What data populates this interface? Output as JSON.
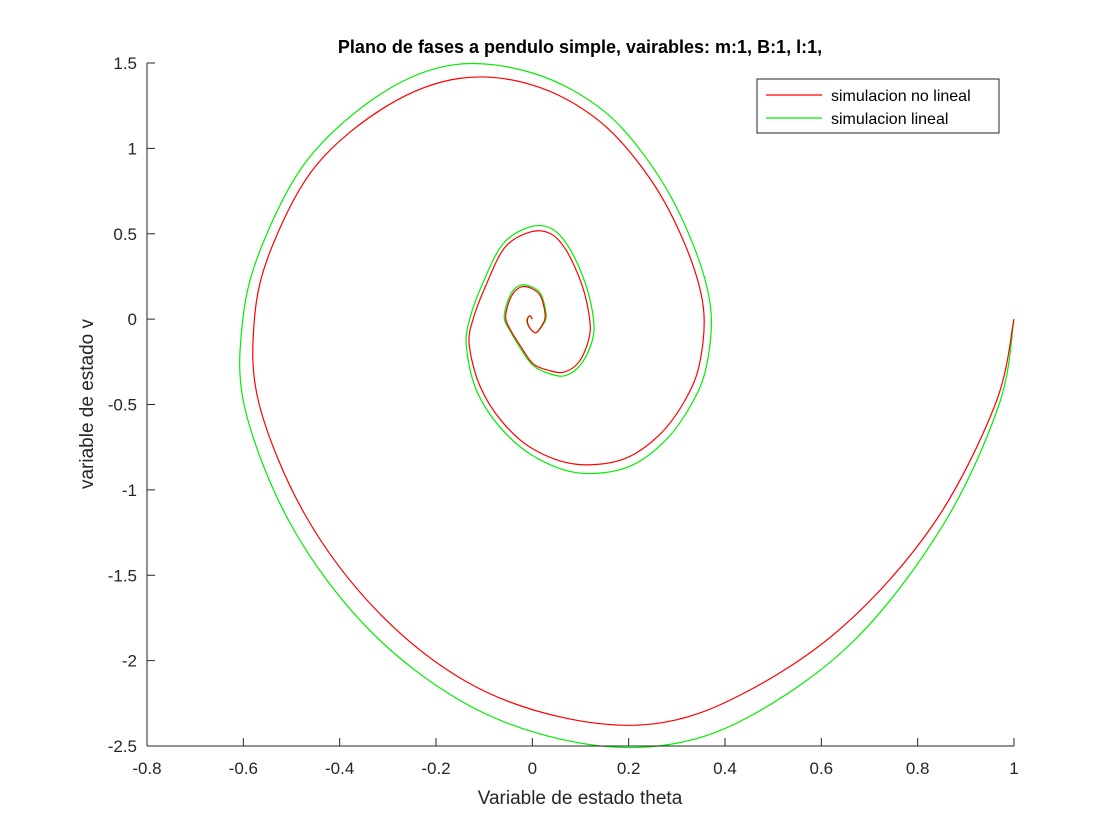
{
  "chart_data": {
    "type": "line",
    "title": "Plano de fases a pendulo simple, vairables: m:1, B:1, l:1,",
    "xlabel": "Variable de estado theta",
    "ylabel": "variable de estado v",
    "xlim": [
      -0.8,
      1
    ],
    "ylim": [
      -2.5,
      1.5
    ],
    "xticks": [
      -0.8,
      -0.6,
      -0.4,
      -0.2,
      0,
      0.2,
      0.4,
      0.6,
      0.8,
      1
    ],
    "yticks": [
      -2.5,
      -2,
      -1.5,
      -1,
      -0.5,
      0,
      0.5,
      1,
      1.5
    ],
    "xtick_labels": [
      "-0.8",
      "-0.6",
      "-0.4",
      "-0.2",
      "0",
      "0.2",
      "0.4",
      "0.6",
      "0.8",
      "1"
    ],
    "ytick_labels": [
      "-2.5",
      "-2",
      "-1.5",
      "-1",
      "-0.5",
      "0",
      "0.5",
      "1",
      "1.5"
    ],
    "grid": false,
    "legend_position": "top-right",
    "series": [
      {
        "name": "simulacion no lineal",
        "color": "#ff0000",
        "x": [
          1.0,
          0.961,
          0.833,
          0.645,
          0.433,
          0.253,
          0.058,
          -0.139,
          -0.322,
          -0.471,
          -0.567,
          -0.577,
          -0.541,
          -0.449,
          -0.301,
          -0.151,
          0.001,
          0.139,
          0.245,
          0.318,
          0.355,
          0.348,
          0.318,
          0.263,
          0.189,
          0.091,
          0.001,
          -0.063,
          -0.109,
          -0.131,
          -0.123,
          -0.096,
          -0.057,
          -0.005,
          0.038,
          0.071,
          0.103,
          0.119,
          0.117,
          0.097,
          0.066,
          0.034,
          0.001,
          -0.024,
          -0.046,
          -0.055,
          -0.052,
          -0.04,
          -0.022,
          -0.002,
          0.016,
          0.025,
          0.026,
          0.017,
          0.007,
          -0.003,
          -0.009,
          -0.01,
          -0.005,
          0.0
        ],
        "y": [
          0.0,
          -0.5,
          -1.2,
          -1.8,
          -2.2,
          -2.37,
          -2.33,
          -2.12,
          -1.71,
          -1.15,
          -0.5,
          0.0,
          0.42,
          0.9,
          1.25,
          1.41,
          1.37,
          1.16,
          0.82,
          0.43,
          0.07,
          -0.25,
          -0.47,
          -0.68,
          -0.82,
          -0.85,
          -0.76,
          -0.6,
          -0.39,
          -0.15,
          0.0,
          0.2,
          0.42,
          0.51,
          0.5,
          0.4,
          0.2,
          0.0,
          -0.12,
          -0.25,
          -0.31,
          -0.3,
          -0.26,
          -0.16,
          -0.06,
          0.0,
          0.07,
          0.15,
          0.19,
          0.18,
          0.14,
          0.06,
          0.0,
          -0.05,
          -0.08,
          -0.06,
          -0.03,
          0.0,
          0.02,
          0.0
        ]
      },
      {
        "name": "simulacion lineal",
        "color": "#00ee00",
        "x": [
          1.0,
          0.969,
          0.854,
          0.669,
          0.449,
          0.262,
          0.059,
          -0.146,
          -0.342,
          -0.5,
          -0.597,
          -0.601,
          -0.56,
          -0.465,
          -0.314,
          -0.162,
          0.002,
          0.148,
          0.257,
          0.332,
          0.37,
          0.362,
          0.33,
          0.273,
          0.195,
          0.094,
          0.001,
          -0.068,
          -0.117,
          -0.137,
          -0.13,
          -0.103,
          -0.061,
          -0.005,
          0.04,
          0.076,
          0.11,
          0.127,
          0.124,
          0.102,
          0.07,
          0.036,
          0.001,
          -0.025,
          -0.048,
          -0.058,
          -0.055,
          -0.042,
          -0.023,
          -0.002,
          0.017,
          0.027,
          0.028,
          0.018,
          0.007,
          -0.003,
          -0.01,
          -0.011,
          -0.005,
          0.0
        ],
        "y": [
          0.0,
          -0.5,
          -1.2,
          -1.88,
          -2.33,
          -2.5,
          -2.46,
          -2.24,
          -1.81,
          -1.21,
          -0.52,
          0.0,
          0.44,
          0.94,
          1.32,
          1.49,
          1.44,
          1.22,
          0.86,
          0.45,
          0.07,
          -0.27,
          -0.5,
          -0.72,
          -0.87,
          -0.9,
          -0.8,
          -0.63,
          -0.41,
          -0.16,
          0.0,
          0.21,
          0.44,
          0.54,
          0.53,
          0.42,
          0.21,
          0.0,
          -0.13,
          -0.26,
          -0.33,
          -0.32,
          -0.27,
          -0.17,
          -0.06,
          0.0,
          0.07,
          0.16,
          0.2,
          0.19,
          0.15,
          0.06,
          0.0,
          -0.05,
          -0.08,
          -0.06,
          -0.03,
          0.0,
          0.02,
          0.0
        ]
      }
    ]
  }
}
